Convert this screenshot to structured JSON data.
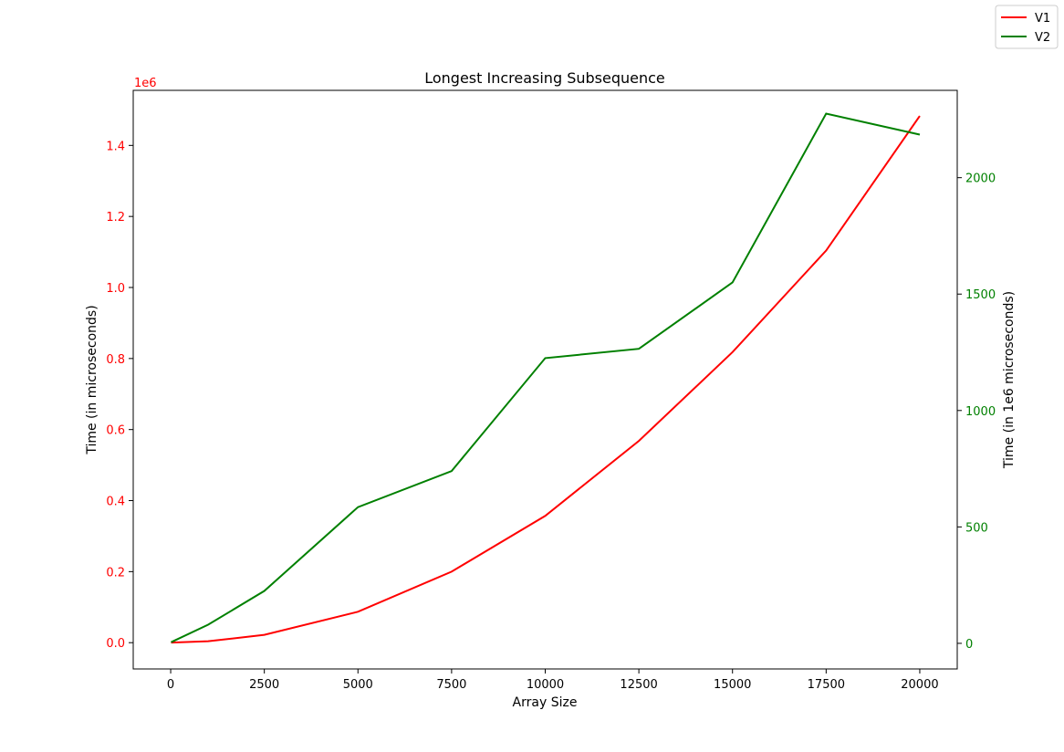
{
  "chart_data": {
    "type": "line",
    "title": "Longest Increasing Subsequence",
    "xlabel": "Array Size",
    "ylabel_left": "Time (in microseconds)",
    "ylabel_right": "Time (in 1e6 microseconds)",
    "left_offset_label": "1e6",
    "x": [
      10,
      1000,
      2500,
      5000,
      7500,
      10000,
      12500,
      15000,
      17500,
      20000
    ],
    "xlim": [
      -1000,
      21000
    ],
    "xticks": [
      0,
      2500,
      5000,
      7500,
      10000,
      12500,
      15000,
      17500,
      20000
    ],
    "left_axis": {
      "ylim": [
        -0.074,
        1.555
      ],
      "ticks": [
        0.0,
        0.2,
        0.4,
        0.6,
        0.8,
        1.0,
        1.2,
        1.4
      ],
      "tick_labels": [
        "0.0",
        "0.2",
        "0.4",
        "0.6",
        "0.8",
        "1.0",
        "1.2",
        "1.4"
      ],
      "color": "#ff0000"
    },
    "right_axis": {
      "ylim": [
        -110,
        2375
      ],
      "ticks": [
        0,
        500,
        1000,
        1500,
        2000
      ],
      "tick_labels": [
        "0",
        "500",
        "1000",
        "1500",
        "2000"
      ],
      "color": "#008000"
    },
    "series": [
      {
        "name": "V1",
        "axis": "left",
        "color": "#ff0000",
        "values": [
          0.0001,
          0.004,
          0.022,
          0.087,
          0.2,
          0.357,
          0.568,
          0.818,
          1.104,
          1.483
        ]
      },
      {
        "name": "V2",
        "axis": "right",
        "color": "#008000",
        "values": [
          5,
          80,
          225,
          585,
          740,
          1225,
          1265,
          1550,
          2275,
          2185
        ]
      }
    ],
    "legend_position": "top-right",
    "grid": false
  }
}
